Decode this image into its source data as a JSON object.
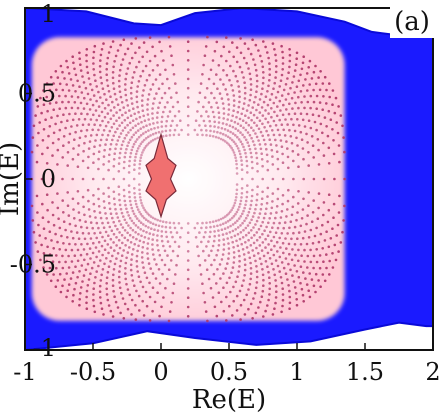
{
  "chart_data": {
    "type": "scatter",
    "panel_label": "(a)",
    "xlabel": "Re(E)",
    "ylabel": "Im(E)",
    "xlim": [
      -1,
      2
    ],
    "ylim": [
      -1,
      1
    ],
    "x_ticks": [
      -1,
      -0.5,
      0,
      0.5,
      1,
      1.5,
      2
    ],
    "x_tick_labels": [
      "-1",
      "-0.5",
      "0",
      "0.5",
      "1",
      "1.5",
      "2"
    ],
    "y_ticks": [
      -1,
      -0.5,
      0,
      0.5,
      1
    ],
    "y_tick_labels": [
      "-1",
      "-0.5",
      "0",
      "0.5",
      "1"
    ],
    "grid": false,
    "colors": {
      "blue_region": "#1a1aff",
      "pink_points": "#b03a6a",
      "pink_glow": "#ffd4de",
      "inner_region": "#f07070",
      "axes": "#111111"
    },
    "series": [
      {
        "color": "#1a1aff",
        "region": "outer spectrum",
        "boundary": [
          [
            -1.0,
            -1.0
          ],
          [
            -0.5,
            -0.96
          ],
          [
            -0.1,
            -0.89
          ],
          [
            0.25,
            -0.93
          ],
          [
            0.7,
            -0.97
          ],
          [
            1.1,
            -0.95
          ],
          [
            1.5,
            -0.88
          ],
          [
            1.75,
            -0.84
          ],
          [
            1.95,
            -0.86
          ],
          [
            2.0,
            -0.86
          ],
          [
            2.0,
            0.86
          ],
          [
            1.75,
            0.84
          ],
          [
            1.55,
            0.86
          ],
          [
            1.35,
            0.92
          ],
          [
            1.0,
            0.98
          ],
          [
            0.6,
            1.0
          ],
          [
            0.25,
            0.97
          ],
          [
            0.0,
            0.9
          ],
          [
            -0.2,
            0.91
          ],
          [
            -0.55,
            0.98
          ],
          [
            -1.0,
            1.0
          ]
        ]
      },
      {
        "color": "#b03a6a",
        "region": "inner dotted spectrum",
        "x_range": [
          -0.95,
          1.35
        ],
        "y_range": [
          -0.83,
          0.83
        ]
      },
      {
        "color": "#f07070",
        "region": "central spectrum",
        "boundary": [
          [
            -0.05,
            0.12
          ],
          [
            0.0,
            0.26
          ],
          [
            0.05,
            0.12
          ],
          [
            0.11,
            0.08
          ],
          [
            0.07,
            0.0
          ],
          [
            0.11,
            -0.07
          ],
          [
            0.04,
            -0.12
          ],
          [
            0.0,
            -0.22
          ],
          [
            -0.04,
            -0.12
          ],
          [
            -0.11,
            -0.07
          ],
          [
            -0.07,
            0.0
          ],
          [
            -0.11,
            0.08
          ]
        ]
      }
    ]
  }
}
